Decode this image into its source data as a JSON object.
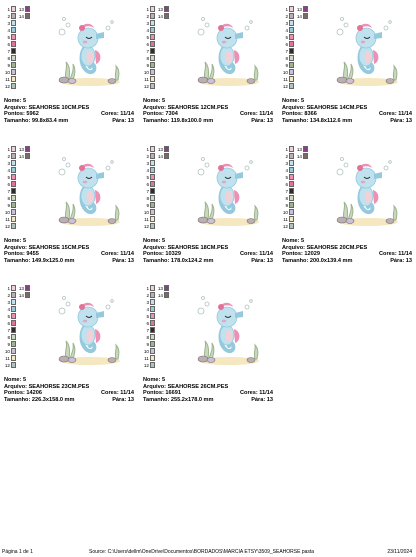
{
  "labels": {
    "name": "Nome:",
    "file": "Arquivo:",
    "stitches": "Pontos:",
    "colors": "Cores:",
    "size": "Tamanho:",
    "stops": "Pára:"
  },
  "palette": [
    {
      "num": "1",
      "color": "#f2d0d8",
      "num2": "13",
      "color2": "#8b3f88"
    },
    {
      "num": "2",
      "color": "#b9b0b6",
      "num2": "14",
      "color2": "#7a6a68"
    },
    {
      "num": "3",
      "color": "#bfe2ee"
    },
    {
      "num": "4",
      "color": "#95c9de"
    },
    {
      "num": "5",
      "color": "#ee8fb4"
    },
    {
      "num": "6",
      "color": "#e07398"
    },
    {
      "num": "7",
      "color": "#2e2a2a"
    },
    {
      "num": "8",
      "color": "#c7d8bf"
    },
    {
      "num": "9",
      "color": "#9db48e"
    },
    {
      "num": "10",
      "color": "#c9c0d9"
    },
    {
      "num": "11",
      "color": "#f5e7bf"
    },
    {
      "num": "12",
      "color": "#aec3bf"
    }
  ],
  "designs": [
    {
      "name": "5",
      "file": "SEAHORSE 10CM.PES",
      "stitches": "5962",
      "colors": "11/14",
      "size": "99.8x83.4 mm",
      "stops": "13"
    },
    {
      "name": "5",
      "file": "SEAHORSE 12CM.PES",
      "stitches": "7304",
      "colors": "11/14",
      "size": "119.8x100.0 mm",
      "stops": "13"
    },
    {
      "name": "5",
      "file": "SEAHORSE 14CM.PES",
      "stitches": "8366",
      "colors": "11/14",
      "size": "134.8x112.6 mm",
      "stops": "13"
    },
    {
      "name": "5",
      "file": "SEAHORSE 15CM.PES",
      "stitches": "9455",
      "colors": "11/14",
      "size": "149.9x125.0 mm",
      "stops": "13"
    },
    {
      "name": "5",
      "file": "SEAHORSE 18CM.PES",
      "stitches": "10329",
      "colors": "11/14",
      "size": "178.0x124.2 mm",
      "stops": "13"
    },
    {
      "name": "5",
      "file": "SEAHORSE 20CM.PES",
      "stitches": "12029",
      "colors": "11/14",
      "size": "200.0x139.4 mm",
      "stops": "13"
    },
    {
      "name": "5",
      "file": "SEAHORSE 23CM.PES",
      "stitches": "14206",
      "colors": "11/14",
      "size": "226.3x158.0 mm",
      "stops": "13"
    },
    {
      "name": "5",
      "file": "SEAHORSE 26CM.PES",
      "stitches": "16691",
      "colors": "11/14",
      "size": "255.2x178.0 mm",
      "stops": "13"
    }
  ],
  "footer": {
    "page": "Página 1 de 1",
    "source": "Source: C:\\Users\\dellm\\OneDrive\\Documentos\\BORDADOS\\MARCIA ETSY\\3509_SEAHORSE pasta",
    "date": "23/11/2024"
  }
}
